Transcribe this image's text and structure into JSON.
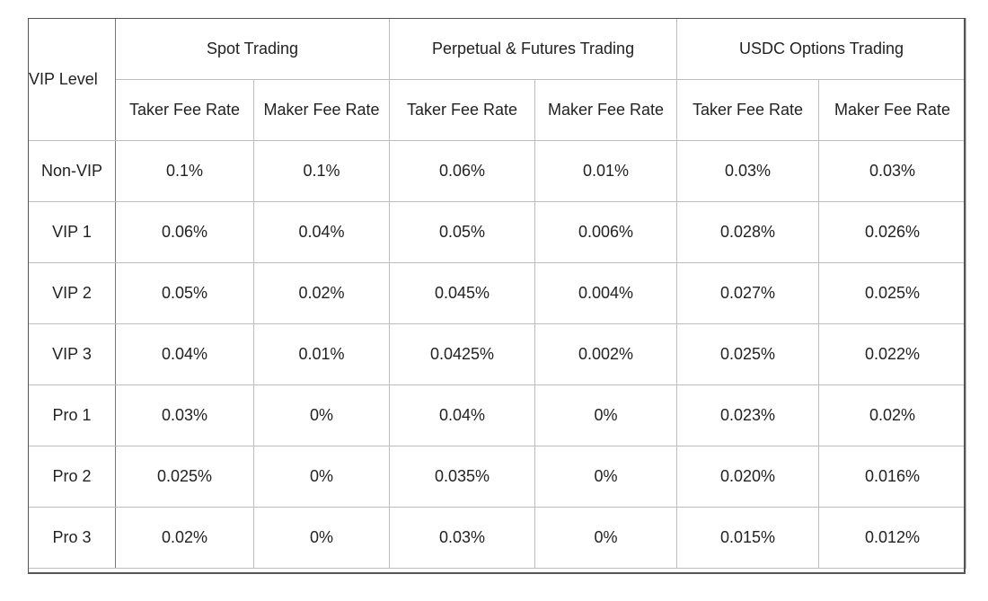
{
  "header": {
    "vip_level": "VIP Level",
    "groups": [
      "Spot Trading",
      "Perpetual & Futures Trading",
      "USDC Options Trading"
    ],
    "subheaders": [
      "Taker Fee Rate",
      "Maker Fee Rate",
      "Taker Fee Rate",
      "Maker Fee Rate",
      "Taker Fee Rate",
      "Maker Fee Rate"
    ]
  },
  "rows": [
    {
      "level": "Non-VIP",
      "values": [
        "0.1%",
        "0.1%",
        "0.06%",
        "0.01%",
        "0.03%",
        "0.03%"
      ]
    },
    {
      "level": "VIP 1",
      "values": [
        "0.06%",
        "0.04%",
        "0.05%",
        "0.006%",
        "0.028%",
        "0.026%"
      ]
    },
    {
      "level": "VIP 2",
      "values": [
        "0.05%",
        "0.02%",
        "0.045%",
        "0.004%",
        "0.027%",
        "0.025%"
      ]
    },
    {
      "level": "VIP 3",
      "values": [
        "0.04%",
        "0.01%",
        "0.0425%",
        "0.002%",
        "0.025%",
        "0.022%"
      ]
    },
    {
      "level": "Pro 1",
      "values": [
        "0.03%",
        "0%",
        "0.04%",
        "0%",
        "0.023%",
        "0.02%"
      ]
    },
    {
      "level": "Pro 2",
      "values": [
        "0.025%",
        "0%",
        "0.035%",
        "0%",
        "0.020%",
        "0.016%"
      ]
    },
    {
      "level": "Pro 3",
      "values": [
        "0.02%",
        "0%",
        "0.03%",
        "0%",
        "0.015%",
        "0.012%"
      ]
    }
  ]
}
